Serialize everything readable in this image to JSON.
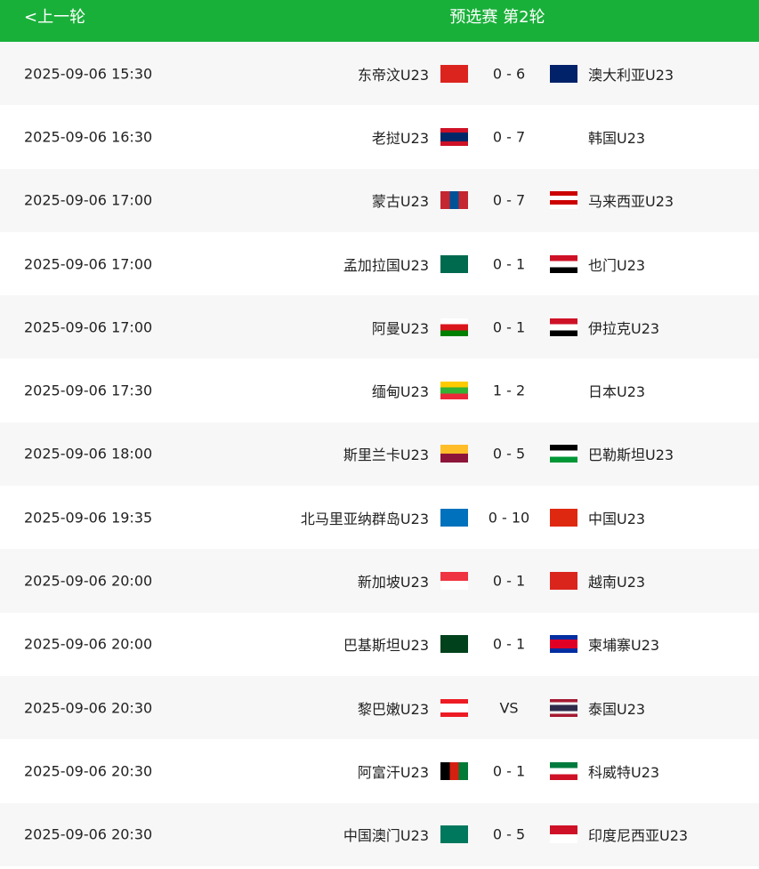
{
  "header": {
    "back_label": "<上一轮",
    "title": "预选赛 第2轮",
    "color": "#19b03a"
  },
  "matches": [
    {
      "time": "2025-09-06 15:30",
      "home": "东帝汶U23",
      "score": "0 - 6",
      "away": "澳大利亚U23",
      "home_flag": [
        "#dc241f"
      ],
      "away_flag": [
        "#012169"
      ]
    },
    {
      "time": "2025-09-06 16:30",
      "home": "老挝U23",
      "score": "0 - 7",
      "away": "韩国U23",
      "home_flag": [
        "#ce1126",
        "#002868",
        "#002868",
        "#ce1126"
      ],
      "away_flag": [
        "#ffffff"
      ]
    },
    {
      "time": "2025-09-06 17:00",
      "home": "蒙古U23",
      "score": "0 - 7",
      "away": "马来西亚U23",
      "home_flag": [
        "#c4272f",
        "#015197",
        "#c4272f"
      ],
      "away_flag": [
        "#cc0001",
        "#ffffff",
        "#cc0001",
        "#ffffff"
      ],
      "home_dir": "v"
    },
    {
      "time": "2025-09-06 17:00",
      "home": "孟加拉国U23",
      "score": "0 - 1",
      "away": "也门U23",
      "home_flag": [
        "#006a4e"
      ],
      "away_flag": [
        "#ce1126",
        "#ffffff",
        "#000000"
      ]
    },
    {
      "time": "2025-09-06 17:00",
      "home": "阿曼U23",
      "score": "0 - 1",
      "away": "伊拉克U23",
      "home_flag": [
        "#ffffff",
        "#db161b",
        "#008000"
      ],
      "away_flag": [
        "#ce1126",
        "#ffffff",
        "#000000"
      ]
    },
    {
      "time": "2025-09-06 17:30",
      "home": "缅甸U23",
      "score": "1 - 2",
      "away": "日本U23",
      "home_flag": [
        "#fecb00",
        "#34b233",
        "#ea2839"
      ],
      "away_flag": [
        "#ffffff"
      ]
    },
    {
      "time": "2025-09-06 18:00",
      "home": "斯里兰卡U23",
      "score": "0 - 5",
      "away": "巴勒斯坦U23",
      "home_flag": [
        "#ffbe29",
        "#8d153a"
      ],
      "away_flag": [
        "#000000",
        "#ffffff",
        "#009736"
      ]
    },
    {
      "time": "2025-09-06 19:35",
      "home": "北马里亚纳群岛U23",
      "score": "0 - 10",
      "away": "中国U23",
      "home_flag": [
        "#0071bc"
      ],
      "away_flag": [
        "#de2910"
      ]
    },
    {
      "time": "2025-09-06 20:00",
      "home": "新加坡U23",
      "score": "0 - 1",
      "away": "越南U23",
      "home_flag": [
        "#ef3340",
        "#ffffff"
      ],
      "away_flag": [
        "#da251d"
      ]
    },
    {
      "time": "2025-09-06 20:00",
      "home": "巴基斯坦U23",
      "score": "0 - 1",
      "away": "柬埔寨U23",
      "home_flag": [
        "#01411c"
      ],
      "away_flag": [
        "#032ea1",
        "#e00025",
        "#e00025",
        "#032ea1"
      ]
    },
    {
      "time": "2025-09-06 20:30",
      "home": "黎巴嫩U23",
      "score": "VS",
      "away": "泰国U23",
      "home_flag": [
        "#ed1c24",
        "#ffffff",
        "#ffffff",
        "#ed1c24"
      ],
      "away_flag": [
        "#a51931",
        "#f4f5f8",
        "#2d2a4a",
        "#2d2a4a",
        "#f4f5f8",
        "#a51931"
      ]
    },
    {
      "time": "2025-09-06 20:30",
      "home": "阿富汗U23",
      "score": "0 - 1",
      "away": "科威特U23",
      "home_flag": [
        "#000000",
        "#d32011",
        "#007a36"
      ],
      "away_flag": [
        "#007a3d",
        "#ffffff",
        "#ce1126"
      ],
      "home_dir": "v"
    },
    {
      "time": "2025-09-06 20:30",
      "home": "中国澳门U23",
      "score": "0 - 5",
      "away": "印度尼西亚U23",
      "home_flag": [
        "#00785e"
      ],
      "away_flag": [
        "#ce1126",
        "#ffffff"
      ]
    }
  ]
}
